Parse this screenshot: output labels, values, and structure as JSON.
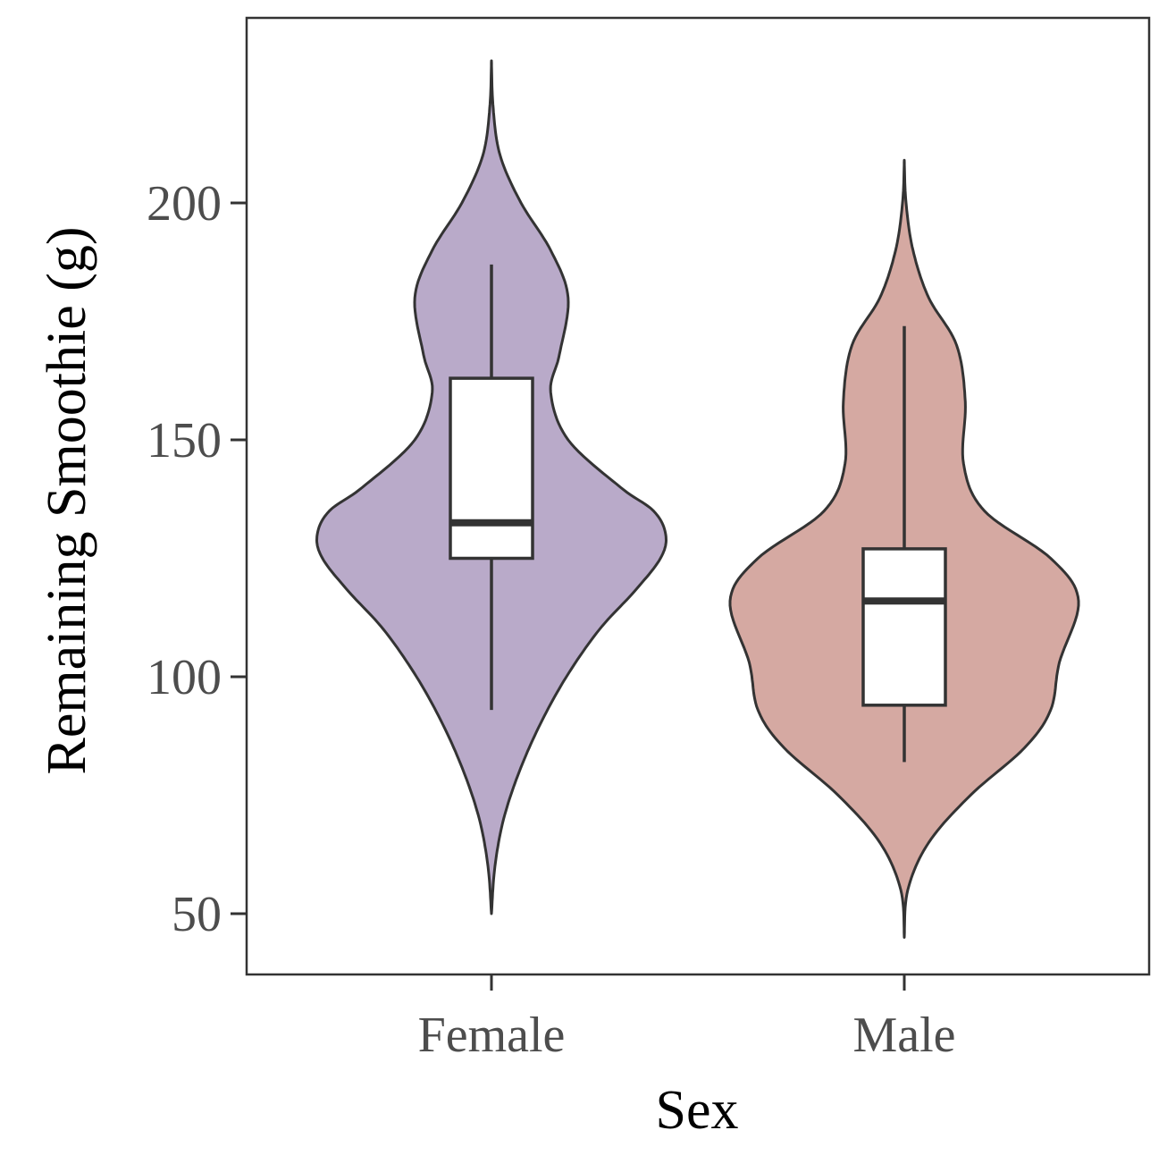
{
  "chart_data": {
    "type": "violin",
    "xlabel": "Sex",
    "ylabel": "Remaining Smoothie (g)",
    "categories": [
      "Female",
      "Male"
    ],
    "ylim": [
      42,
      238
    ],
    "yticks": [
      50,
      100,
      150,
      200
    ],
    "grid": false,
    "legend": "none",
    "series": [
      {
        "name": "Female",
        "color": "#b9aac9",
        "violin_min": 50,
        "violin_max": 230,
        "density": [
          [
            50,
            0.0
          ],
          [
            60,
            0.02
          ],
          [
            70,
            0.07
          ],
          [
            80,
            0.16
          ],
          [
            90,
            0.28
          ],
          [
            100,
            0.43
          ],
          [
            110,
            0.62
          ],
          [
            118,
            0.82
          ],
          [
            125,
            0.97
          ],
          [
            130,
            1.0
          ],
          [
            135,
            0.93
          ],
          [
            140,
            0.74
          ],
          [
            150,
            0.44
          ],
          [
            160,
            0.34
          ],
          [
            168,
            0.39
          ],
          [
            180,
            0.44
          ],
          [
            190,
            0.34
          ],
          [
            200,
            0.17
          ],
          [
            210,
            0.05
          ],
          [
            220,
            0.01
          ],
          [
            230,
            0.0
          ]
        ],
        "box": {
          "whisker_low": 93,
          "q1": 125,
          "median": 132.5,
          "q3": 163,
          "whisker_high": 187
        }
      },
      {
        "name": "Male",
        "color": "#d5a9a2",
        "violin_min": 45,
        "violin_max": 209,
        "density": [
          [
            45,
            0.0
          ],
          [
            55,
            0.02
          ],
          [
            65,
            0.14
          ],
          [
            75,
            0.38
          ],
          [
            85,
            0.69
          ],
          [
            93,
            0.84
          ],
          [
            103,
            0.89
          ],
          [
            116,
            1.0
          ],
          [
            125,
            0.84
          ],
          [
            135,
            0.46
          ],
          [
            145,
            0.34
          ],
          [
            158,
            0.35
          ],
          [
            170,
            0.3
          ],
          [
            180,
            0.14
          ],
          [
            190,
            0.05
          ],
          [
            200,
            0.01
          ],
          [
            209,
            0.0
          ]
        ],
        "box": {
          "whisker_low": 82,
          "q1": 94,
          "median": 116,
          "q3": 127,
          "whisker_high": 174
        }
      }
    ]
  }
}
